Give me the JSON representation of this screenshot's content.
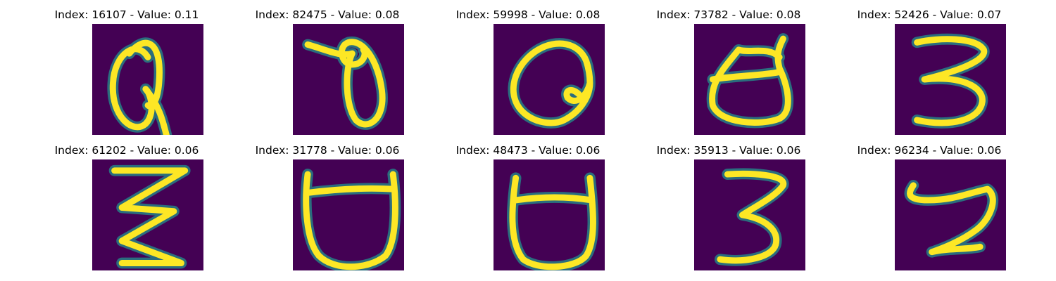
{
  "colors": {
    "background": "#440154",
    "halo": "#21918c",
    "stroke": "#fde725",
    "figure_background": "#ffffff"
  },
  "panels": [
    {
      "title": "Index: 16107 - Value: 0.11",
      "glyph": "Q-like"
    },
    {
      "title": "Index: 82475 - Value: 0.08",
      "glyph": "theta-like"
    },
    {
      "title": "Index: 59998 - Value: 0.08",
      "glyph": "Q-like"
    },
    {
      "title": "Index: 73782 - Value: 0.08",
      "glyph": "d-like"
    },
    {
      "title": "Index: 52426 - Value: 0.07",
      "glyph": "3-like"
    },
    {
      "title": "Index: 61202 - Value: 0.06",
      "glyph": "Z-like"
    },
    {
      "title": "Index: 31778 - Value: 0.06",
      "glyph": "U-like"
    },
    {
      "title": "Index: 48473 - Value: 0.06",
      "glyph": "U-like"
    },
    {
      "title": "Index: 35913 - Value: 0.06",
      "glyph": "3-like"
    },
    {
      "title": "Index: 96234 - Value: 0.06",
      "glyph": "S-like"
    }
  ]
}
